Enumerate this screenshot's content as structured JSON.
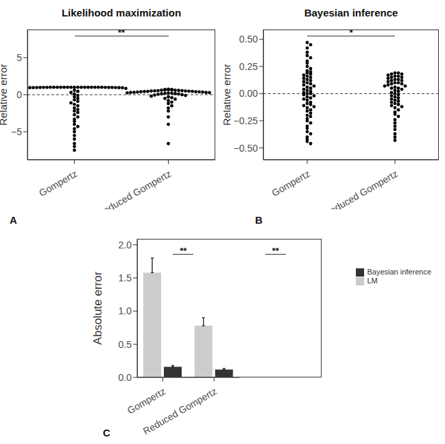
{
  "chart_data": [
    {
      "type": "scatter",
      "panel": "A",
      "title": "Likelihood maximization",
      "y_label": "Relative error",
      "categories": [
        "Gompertz",
        "Reduced Gompertz"
      ],
      "color": "#000000",
      "values": [
        [
          1,
          1,
          1,
          1,
          1,
          1,
          1,
          1,
          1,
          1,
          1,
          1,
          1,
          1,
          1,
          1,
          0.99,
          0.99,
          0.99,
          0.98,
          0.98,
          0.98,
          0.97,
          0.97,
          0.96,
          0.95,
          0.95,
          0.93,
          0.9,
          0.85,
          0.75,
          0.6,
          0.45,
          0.3,
          0.1,
          -0.1,
          -0.3,
          -0.5,
          -0.7,
          -0.9,
          -1.1,
          -1.3,
          -1.5,
          -1.8,
          -2.0,
          -2.2,
          -2.4,
          -2.7,
          -3.0,
          -3.3,
          -3.6,
          -4.0,
          -4.3,
          -4.6,
          -5.0,
          -5.5,
          -6.0,
          -6.6,
          -7.0,
          -7.5
        ],
        [
          0.75,
          0.7,
          0.7,
          0.68,
          0.65,
          0.63,
          0.6,
          0.6,
          0.58,
          0.55,
          0.55,
          0.52,
          0.5,
          0.5,
          0.48,
          0.45,
          0.45,
          0.42,
          0.4,
          0.4,
          0.38,
          0.35,
          0.35,
          0.32,
          0.3,
          0.3,
          0.28,
          0.25,
          0.22,
          0.2,
          0.18,
          0.15,
          0.12,
          0.1,
          0.05,
          0.0,
          -0.05,
          -0.1,
          -0.2,
          -0.3,
          -0.4,
          -0.5,
          -0.6,
          -0.8,
          -1.0,
          -1.2,
          -1.5,
          -1.8,
          -2.2,
          -3.0,
          -4.0,
          -6.6
        ]
      ],
      "hline": 0,
      "ylim": [
        -8.8,
        8.8
      ],
      "yticks": [
        {
          "value": -5,
          "label": "−5"
        },
        0,
        5
      ],
      "annotations": [
        {
          "text": "**",
          "from": 0,
          "to": 1
        }
      ]
    },
    {
      "type": "scatter",
      "panel": "B",
      "title": "Bayesian inference",
      "y_label": "Relative error",
      "categories": [
        "Gompertz",
        "Reduced Gompertz"
      ],
      "color": "#000000",
      "values": [
        [
          0.47,
          0.45,
          0.42,
          0.38,
          0.35,
          0.33,
          0.3,
          0.28,
          0.25,
          0.23,
          0.21,
          0.2,
          0.19,
          0.18,
          0.17,
          0.16,
          0.15,
          0.14,
          0.13,
          0.12,
          0.11,
          0.1,
          0.09,
          0.08,
          0.07,
          0.06,
          0.05,
          0.04,
          0.03,
          0.02,
          0.01,
          0.0,
          0.0,
          -0.01,
          -0.02,
          -0.03,
          -0.04,
          -0.05,
          -0.06,
          -0.08,
          -0.09,
          -0.1,
          -0.11,
          -0.12,
          -0.13,
          -0.15,
          -0.16,
          -0.18,
          -0.2,
          -0.21,
          -0.23,
          -0.25,
          -0.27,
          -0.3,
          -0.32,
          -0.35,
          -0.37,
          -0.4,
          -0.42,
          -0.44,
          -0.46
        ],
        [
          0.19,
          0.19,
          0.18,
          0.18,
          0.17,
          0.16,
          0.16,
          0.15,
          0.15,
          0.14,
          0.13,
          0.13,
          0.12,
          0.12,
          0.11,
          0.1,
          0.1,
          0.09,
          0.09,
          0.08,
          0.07,
          0.07,
          0.06,
          0.05,
          0.05,
          0.04,
          0.03,
          0.02,
          0.01,
          0.0,
          -0.01,
          -0.02,
          -0.03,
          -0.04,
          -0.05,
          -0.06,
          -0.07,
          -0.08,
          -0.09,
          -0.1,
          -0.11,
          -0.12,
          -0.13,
          -0.15,
          -0.17,
          -0.19,
          -0.21,
          -0.24,
          -0.27,
          -0.3,
          -0.33,
          -0.37,
          -0.4,
          -0.43
        ]
      ],
      "hline": 0,
      "ylim": [
        -0.61,
        0.59
      ],
      "yticks": [
        {
          "value": -0.5,
          "label": "−0.50"
        },
        {
          "value": -0.25,
          "label": "−0.25"
        },
        {
          "value": 0,
          "label": "0.00"
        },
        {
          "value": 0.25,
          "label": "0.25"
        },
        {
          "value": 0.5,
          "label": "0.50"
        }
      ],
      "annotations": [
        {
          "text": "*",
          "from": 0,
          "to": 1
        }
      ]
    },
    {
      "type": "bar",
      "panel": "C",
      "y_label": "Absolute error",
      "categories": [
        "Gompertz",
        "Reduced Gompertz"
      ],
      "series": [
        {
          "name": "LM",
          "color": "#cccccc",
          "values": [
            1.58,
            0.78
          ],
          "errors": [
            0.22,
            0.12
          ]
        },
        {
          "name": "Bayesian inference",
          "color": "#333333",
          "values": [
            0.16,
            0.12
          ],
          "errors": [
            0.02,
            0.015
          ]
        }
      ],
      "ylim": [
        0,
        2.09
      ],
      "yticks": [
        {
          "value": 0,
          "label": "0.0"
        },
        {
          "value": 0.5,
          "label": "0.5"
        },
        {
          "value": 1,
          "label": "1.0"
        },
        {
          "value": 1.5,
          "label": "1.5"
        },
        {
          "value": 2,
          "label": "2.0"
        }
      ],
      "legend": "right",
      "annotations": [
        {
          "text": "**",
          "category": 0
        },
        {
          "text": "**",
          "category": 1
        }
      ]
    }
  ]
}
